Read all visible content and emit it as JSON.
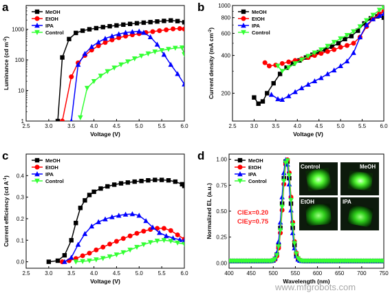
{
  "watermark": "www.mfgrobots.com",
  "colors": {
    "MeOH": "#000000",
    "EtOH": "#ff0000",
    "IPA": "#0000ff",
    "Control": "#33ff33"
  },
  "chart_data": [
    {
      "panel": "a",
      "type": "line",
      "xlabel": "Voltage (V)",
      "ylabel": "Luminance (cd m",
      "ylabel_sup": "-2",
      "ylabel_end": ")",
      "xlim": [
        2.5,
        6.0
      ],
      "ylim": [
        1,
        6000
      ],
      "yscale": "log",
      "xticks": [
        "2.5",
        "3.0",
        "3.5",
        "4.0",
        "4.5",
        "5.0",
        "5.5",
        "6.0"
      ],
      "yticks": [
        {
          "value": 1,
          "label": "1"
        },
        {
          "value": 10,
          "label": "10"
        },
        {
          "value": 100,
          "label": "100"
        },
        {
          "value": 1000,
          "label": "1000"
        }
      ],
      "legend_position": "top-left",
      "series": [
        {
          "name": "MeOH",
          "marker": "square",
          "x": [
            3.2,
            3.3,
            3.45,
            3.6,
            3.75,
            3.9,
            4.05,
            4.2,
            4.35,
            4.5,
            4.65,
            4.8,
            4.95,
            5.1,
            5.25,
            5.4,
            5.55,
            5.7,
            5.85,
            6.0
          ],
          "y": [
            1,
            120,
            480,
            760,
            900,
            1000,
            1090,
            1180,
            1260,
            1340,
            1420,
            1500,
            1580,
            1650,
            1720,
            1800,
            1880,
            1950,
            1850,
            1700
          ]
        },
        {
          "name": "EtOH",
          "marker": "circle",
          "x": [
            3.3,
            3.5,
            3.65,
            3.8,
            3.95,
            4.1,
            4.25,
            4.4,
            4.55,
            4.7,
            4.85,
            5.0,
            5.15,
            5.3,
            5.45,
            5.6,
            5.75,
            5.9,
            6.0
          ],
          "y": [
            1,
            28,
            80,
            140,
            210,
            290,
            370,
            450,
            530,
            600,
            660,
            720,
            780,
            840,
            900,
            960,
            1030,
            1060,
            1020
          ]
        },
        {
          "name": "IPA",
          "marker": "triangle-up",
          "x": [
            3.5,
            3.65,
            3.8,
            3.95,
            4.1,
            4.25,
            4.4,
            4.55,
            4.7,
            4.85,
            5.0,
            5.1,
            5.25,
            5.4,
            5.55,
            5.7,
            5.85,
            6.0
          ],
          "y": [
            1,
            70,
            160,
            270,
            380,
            500,
            600,
            700,
            780,
            830,
            860,
            780,
            560,
            320,
            150,
            70,
            35,
            16
          ]
        },
        {
          "name": "Control",
          "marker": "triangle-down",
          "x": [
            3.7,
            3.85,
            4.0,
            4.15,
            4.3,
            4.45,
            4.6,
            4.75,
            4.9,
            5.05,
            5.2,
            5.35,
            5.5,
            5.65,
            5.8,
            5.95,
            6.0
          ],
          "y": [
            1.3,
            12,
            20,
            30,
            42,
            55,
            70,
            88,
            110,
            135,
            160,
            185,
            205,
            225,
            245,
            250,
            150
          ]
        }
      ]
    },
    {
      "panel": "b",
      "type": "line",
      "xlabel": "Voltage (V)",
      "ylabel": "Current density (mA cm",
      "ylabel_sup": "-2",
      "ylabel_end": ")",
      "xlim": [
        2.5,
        6.0
      ],
      "ylim": [
        120,
        1000
      ],
      "yscale": "log",
      "xticks": [
        "2.5",
        "3.0",
        "3.5",
        "4.0",
        "4.5",
        "5.0",
        "5.5",
        "6.0"
      ],
      "yticks": [
        {
          "value": 200,
          "label": "200"
        },
        {
          "value": 400,
          "label": "400"
        },
        {
          "value": 600,
          "label": "600"
        },
        {
          "value": 800,
          "label": "800"
        },
        {
          "value": 1000,
          "label": "1000"
        }
      ],
      "legend_position": "top-left",
      "series": [
        {
          "name": "MeOH",
          "marker": "square",
          "x": [
            3.0,
            3.1,
            3.2,
            3.3,
            3.45,
            3.6,
            3.75,
            3.9,
            4.05,
            4.2,
            4.35,
            4.5,
            4.65,
            4.8,
            4.95,
            5.1,
            5.25,
            5.4,
            5.55,
            5.7,
            5.85,
            6.0
          ],
          "y": [
            185,
            165,
            172,
            200,
            240,
            285,
            320,
            345,
            365,
            385,
            405,
            425,
            445,
            470,
            500,
            540,
            570,
            630,
            720,
            790,
            820,
            800
          ]
        },
        {
          "name": "EtOH",
          "marker": "circle",
          "x": [
            3.25,
            3.35,
            3.5,
            3.65,
            3.8,
            3.95,
            4.1,
            4.25,
            4.4,
            4.55,
            4.7,
            4.85,
            5.0,
            5.15,
            5.3,
            5.45,
            5.6,
            5.75,
            5.9,
            6.0
          ],
          "y": [
            350,
            330,
            335,
            345,
            355,
            365,
            375,
            385,
            400,
            415,
            430,
            445,
            465,
            480,
            500,
            560,
            680,
            780,
            860,
            900
          ]
        },
        {
          "name": "IPA",
          "marker": "triangle-up",
          "x": [
            3.4,
            3.55,
            3.65,
            3.8,
            3.95,
            4.1,
            4.25,
            4.4,
            4.55,
            4.7,
            4.85,
            5.0,
            5.15,
            5.3,
            5.45,
            5.6,
            5.75,
            5.9,
            6.0
          ],
          "y": [
            195,
            180,
            178,
            190,
            205,
            220,
            235,
            250,
            265,
            285,
            305,
            330,
            360,
            420,
            560,
            700,
            780,
            830,
            860
          ]
        },
        {
          "name": "Control",
          "marker": "triangle-down",
          "x": [
            3.55,
            3.65,
            3.8,
            3.95,
            4.1,
            4.25,
            4.4,
            4.55,
            4.7,
            4.85,
            5.0,
            5.15,
            5.3,
            5.45,
            5.6,
            5.75,
            5.9,
            6.0
          ],
          "y": [
            330,
            300,
            320,
            345,
            370,
            395,
            420,
            445,
            475,
            510,
            545,
            580,
            620,
            680,
            760,
            840,
            920,
            960
          ]
        }
      ]
    },
    {
      "panel": "c",
      "type": "line",
      "xlabel": "Voltage (V)",
      "ylabel": "Current efficiency (cd A",
      "ylabel_sup": "-1",
      "ylabel_end": ")",
      "xlim": [
        2.5,
        6.0
      ],
      "ylim": [
        -0.03,
        0.5
      ],
      "yscale": "linear",
      "xticks": [
        "2.5",
        "3.0",
        "3.5",
        "4.0",
        "4.5",
        "5.0",
        "5.5",
        "6.0"
      ],
      "yticks": [
        {
          "value": 0.0,
          "label": "0.0"
        },
        {
          "value": 0.1,
          "label": "0.1"
        },
        {
          "value": 0.2,
          "label": "0.2"
        },
        {
          "value": 0.3,
          "label": "0.3"
        },
        {
          "value": 0.4,
          "label": "0.4"
        }
      ],
      "legend_position": "top-left",
      "series": [
        {
          "name": "MeOH",
          "marker": "square",
          "x": [
            3.0,
            3.2,
            3.35,
            3.5,
            3.6,
            3.7,
            3.8,
            3.9,
            4.0,
            4.15,
            4.3,
            4.45,
            4.6,
            4.75,
            4.9,
            5.05,
            5.2,
            5.35,
            5.5,
            5.65,
            5.8,
            5.95,
            6.0
          ],
          "y": [
            0.0,
            0.005,
            0.03,
            0.1,
            0.18,
            0.25,
            0.285,
            0.31,
            0.325,
            0.34,
            0.35,
            0.358,
            0.364,
            0.368,
            0.372,
            0.375,
            0.378,
            0.38,
            0.38,
            0.378,
            0.372,
            0.36,
            0.352
          ]
        },
        {
          "name": "EtOH",
          "marker": "circle",
          "x": [
            3.3,
            3.45,
            3.6,
            3.75,
            3.9,
            4.05,
            4.2,
            4.35,
            4.5,
            4.65,
            4.8,
            4.95,
            5.1,
            5.25,
            5.4,
            5.55,
            5.7,
            5.85,
            6.0
          ],
          "y": [
            0.0,
            0.005,
            0.015,
            0.028,
            0.04,
            0.055,
            0.068,
            0.082,
            0.095,
            0.108,
            0.12,
            0.132,
            0.142,
            0.15,
            0.155,
            0.155,
            0.145,
            0.125,
            0.105
          ]
        },
        {
          "name": "IPA",
          "marker": "triangle-up",
          "x": [
            3.35,
            3.5,
            3.65,
            3.8,
            3.95,
            4.1,
            4.25,
            4.4,
            4.55,
            4.7,
            4.85,
            5.0,
            5.15,
            5.3,
            5.45,
            5.6,
            5.75,
            5.9,
            6.0
          ],
          "y": [
            0.0,
            0.02,
            0.08,
            0.13,
            0.165,
            0.185,
            0.198,
            0.208,
            0.215,
            0.22,
            0.222,
            0.215,
            0.19,
            0.16,
            0.135,
            0.12,
            0.11,
            0.102,
            0.098
          ]
        },
        {
          "name": "Control",
          "marker": "triangle-down",
          "x": [
            3.6,
            3.75,
            3.9,
            4.05,
            4.2,
            4.35,
            4.5,
            4.65,
            4.8,
            4.95,
            5.1,
            5.25,
            5.4,
            5.55,
            5.7,
            5.85,
            6.0
          ],
          "y": [
            0.0,
            0.002,
            0.005,
            0.01,
            0.016,
            0.024,
            0.033,
            0.043,
            0.055,
            0.068,
            0.08,
            0.09,
            0.097,
            0.1,
            0.096,
            0.088,
            0.082
          ]
        }
      ]
    },
    {
      "panel": "d",
      "type": "line",
      "xlabel": "Wavelength (nm)",
      "ylabel": "Normalized EL (a.u.)",
      "ylabel_sup": "",
      "ylabel_end": "",
      "xlim": [
        400,
        750
      ],
      "ylim": [
        -0.05,
        1.05
      ],
      "yscale": "linear",
      "xticks": [
        "400",
        "450",
        "500",
        "550",
        "600",
        "650",
        "700",
        "750"
      ],
      "yticks": [
        {
          "value": 0.0,
          "label": "0.00"
        },
        {
          "value": 0.25,
          "label": "0.25"
        },
        {
          "value": 0.5,
          "label": "0.50"
        },
        {
          "value": 0.75,
          "label": "0.75"
        },
        {
          "value": 1.0,
          "label": "1.00"
        }
      ],
      "legend_position": "top-left",
      "peak_nm": 530,
      "fwhm_nm": 22,
      "baseline": 0.02,
      "series": [
        {
          "name": "MeOH",
          "marker": "square"
        },
        {
          "name": "EtOH",
          "marker": "circle"
        },
        {
          "name": "IPA",
          "marker": "triangle-up"
        },
        {
          "name": "Control",
          "marker": "triangle-down"
        }
      ],
      "annotations": {
        "cie_x": "CIEx=0.20",
        "cie_y": "CIEy=0.75"
      },
      "photos": [
        "Control",
        "MeOH",
        "EtOH",
        "IPA"
      ]
    }
  ]
}
